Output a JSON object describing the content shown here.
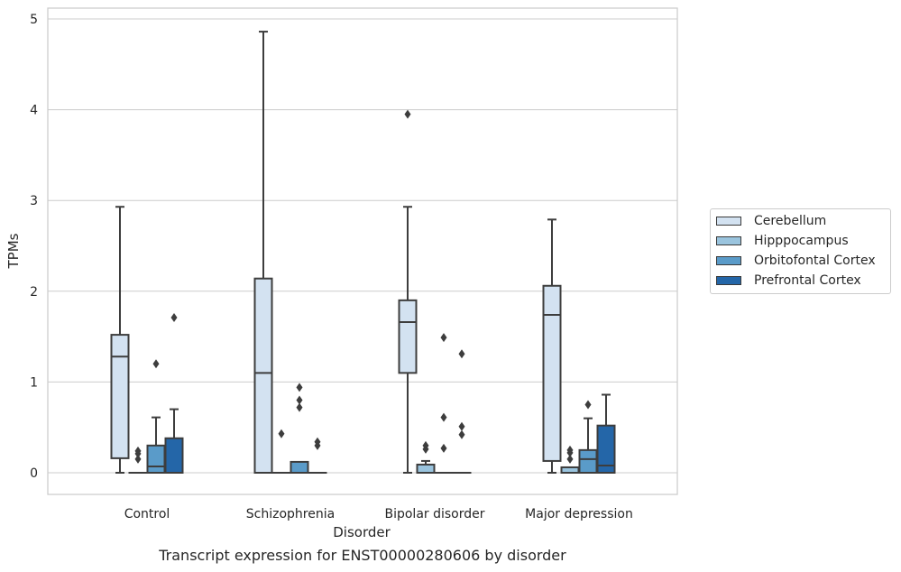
{
  "caption": "Transcript expression for ENST00000280606 by disorder",
  "chart_data": {
    "type": "box",
    "title": "",
    "xlabel": "Disorder",
    "ylabel": "TPMs",
    "ylim": [
      -0.23,
      5.12
    ],
    "yticks": [
      0,
      1,
      2,
      3,
      4,
      5
    ],
    "grid": true,
    "legend_position": "right",
    "categories": [
      "Control",
      "Schizophrenia",
      "Bipolar disorder",
      "Major depression"
    ],
    "series": [
      {
        "name": "Cerebellum",
        "color": "#d3e2f1",
        "boxes": [
          {
            "whislo": 0.0,
            "q1": 0.16,
            "med": 1.28,
            "q3": 1.52,
            "whishi": 2.93,
            "fliers": []
          },
          {
            "whislo": 0.0,
            "q1": 0.0,
            "med": 1.1,
            "q3": 2.14,
            "whishi": 4.86,
            "fliers": []
          },
          {
            "whislo": 0.0,
            "q1": 1.1,
            "med": 1.66,
            "q3": 1.9,
            "whishi": 2.93,
            "fliers": [
              3.95
            ]
          },
          {
            "whislo": 0.0,
            "q1": 0.13,
            "med": 1.74,
            "q3": 2.06,
            "whishi": 2.79,
            "fliers": []
          }
        ]
      },
      {
        "name": "Hipppocampus",
        "color": "#9ac4de",
        "boxes": [
          {
            "whislo": 0.0,
            "q1": 0.0,
            "med": 0.0,
            "q3": 0.0,
            "whishi": 0.0,
            "fliers": [
              0.15,
              0.21,
              0.24
            ]
          },
          {
            "whislo": 0.0,
            "q1": 0.0,
            "med": 0.0,
            "q3": 0.0,
            "whishi": 0.0,
            "fliers": [
              0.43
            ]
          },
          {
            "whislo": 0.0,
            "q1": 0.0,
            "med": 0.0,
            "q3": 0.09,
            "whishi": 0.13,
            "fliers": [
              0.26,
              0.3
            ]
          },
          {
            "whislo": 0.0,
            "q1": 0.0,
            "med": 0.0,
            "q3": 0.06,
            "whishi": 0.06,
            "fliers": [
              0.15,
              0.22,
              0.25
            ]
          }
        ]
      },
      {
        "name": "Orbitofontal Cortex",
        "color": "#5a9bc9",
        "boxes": [
          {
            "whislo": 0.0,
            "q1": 0.0,
            "med": 0.07,
            "q3": 0.3,
            "whishi": 0.61,
            "fliers": [
              1.2
            ]
          },
          {
            "whislo": 0.0,
            "q1": 0.0,
            "med": 0.0,
            "q3": 0.12,
            "whishi": 0.12,
            "fliers": [
              0.72,
              0.8,
              0.94
            ]
          },
          {
            "whislo": 0.0,
            "q1": 0.0,
            "med": 0.0,
            "q3": 0.0,
            "whishi": 0.0,
            "fliers": [
              0.27,
              0.61,
              1.49
            ]
          },
          {
            "whislo": 0.0,
            "q1": 0.0,
            "med": 0.15,
            "q3": 0.25,
            "whishi": 0.6,
            "fliers": [
              0.75
            ]
          }
        ]
      },
      {
        "name": "Prefrontal Cortex",
        "color": "#2466a8",
        "boxes": [
          {
            "whislo": 0.0,
            "q1": 0.0,
            "med": 0.0,
            "q3": 0.38,
            "whishi": 0.7,
            "fliers": [
              1.71
            ]
          },
          {
            "whislo": 0.0,
            "q1": 0.0,
            "med": 0.0,
            "q3": 0.0,
            "whishi": 0.0,
            "fliers": [
              0.3,
              0.34
            ]
          },
          {
            "whislo": 0.0,
            "q1": 0.0,
            "med": 0.0,
            "q3": 0.0,
            "whishi": 0.0,
            "fliers": [
              0.42,
              0.51,
              1.31
            ]
          },
          {
            "whislo": 0.0,
            "q1": 0.0,
            "med": 0.08,
            "q3": 0.52,
            "whishi": 0.86,
            "fliers": []
          }
        ]
      }
    ]
  }
}
